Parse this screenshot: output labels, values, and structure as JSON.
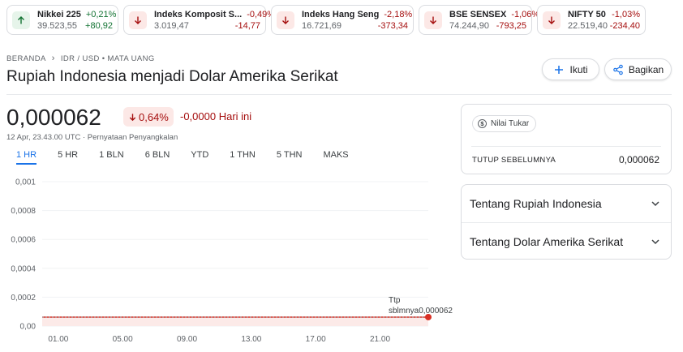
{
  "tickers": [
    {
      "name": "Nikkei 225",
      "price": "39.523,55",
      "pct": "+0,21%",
      "abs": "+80,92",
      "dir": "up"
    },
    {
      "name": "Indeks Komposit S...",
      "price": "3.019,47",
      "pct": "-0,49%",
      "abs": "-14,77",
      "dir": "down"
    },
    {
      "name": "Indeks Hang Seng",
      "price": "16.721,69",
      "pct": "-2,18%",
      "abs": "-373,34",
      "dir": "down"
    },
    {
      "name": "BSE SENSEX",
      "price": "74.244,90",
      "pct": "-1,06%",
      "abs": "-793,25",
      "dir": "down"
    },
    {
      "name": "NIFTY 50",
      "price": "22.519,40",
      "pct": "-1,03%",
      "abs": "-234,40",
      "dir": "down"
    }
  ],
  "breadcrumb": {
    "home": "BERANDA",
    "current": "IDR / USD • MATA UANG"
  },
  "title": "Rupiah Indonesia menjadi Dolar Amerika Serikat",
  "buttons": {
    "follow": "Ikuti",
    "share": "Bagikan"
  },
  "price": {
    "value": "0,000062",
    "pct_change": "0,64%",
    "abs_change": "-0,0000 Hari ini",
    "timestamp": "12 Apr, 23.43.00 UTC · Pernyataan Penyangkalan"
  },
  "tabs": [
    "1 HR",
    "5 HR",
    "1 BLN",
    "6 BLN",
    "YTD",
    "1 THN",
    "5 THN",
    "MAKS"
  ],
  "active_tab": "1 HR",
  "chart_data": {
    "type": "line",
    "y_ticks": [
      "0,001",
      "0,0008",
      "0,0006",
      "0,0004",
      "0,0002",
      "0,00"
    ],
    "y_values": [
      0.001,
      0.0008,
      0.0006,
      0.0004,
      0.0002,
      0
    ],
    "ylim": [
      0,
      0.001
    ],
    "x_ticks": [
      "01.00",
      "05.00",
      "09.00",
      "13.00",
      "17.00",
      "21.00"
    ],
    "x_hours": [
      1,
      5,
      9,
      13,
      17,
      21
    ],
    "xlim": [
      0,
      24
    ],
    "series": [
      {
        "x": [
          0,
          24
        ],
        "y": [
          6.2e-05,
          6.2e-05
        ]
      }
    ],
    "last_x": 24,
    "last_y": 6.2e-05,
    "annotation_line1": "Ttp",
    "annotation_line2": "sblmnya0,000062",
    "grid": true,
    "colors": {
      "line": "#d93025",
      "fill": "#fce8e6",
      "grid": "#f1f3f4",
      "axis": "#5f6368"
    }
  },
  "rate_card": {
    "chip": "Nilai Tukar",
    "prev_label": "TUTUP SEBELUMNYA",
    "prev_value": "0,000062"
  },
  "about": [
    "Tentang Rupiah Indonesia",
    "Tentang Dolar Amerika Serikat"
  ],
  "icons": {
    "up": "arrow-up-icon",
    "down": "arrow-down-icon",
    "follow": "plus-icon",
    "share": "share-icon",
    "chevron": "chevron-down-icon",
    "breadcrumb": "chevron-right-icon"
  }
}
